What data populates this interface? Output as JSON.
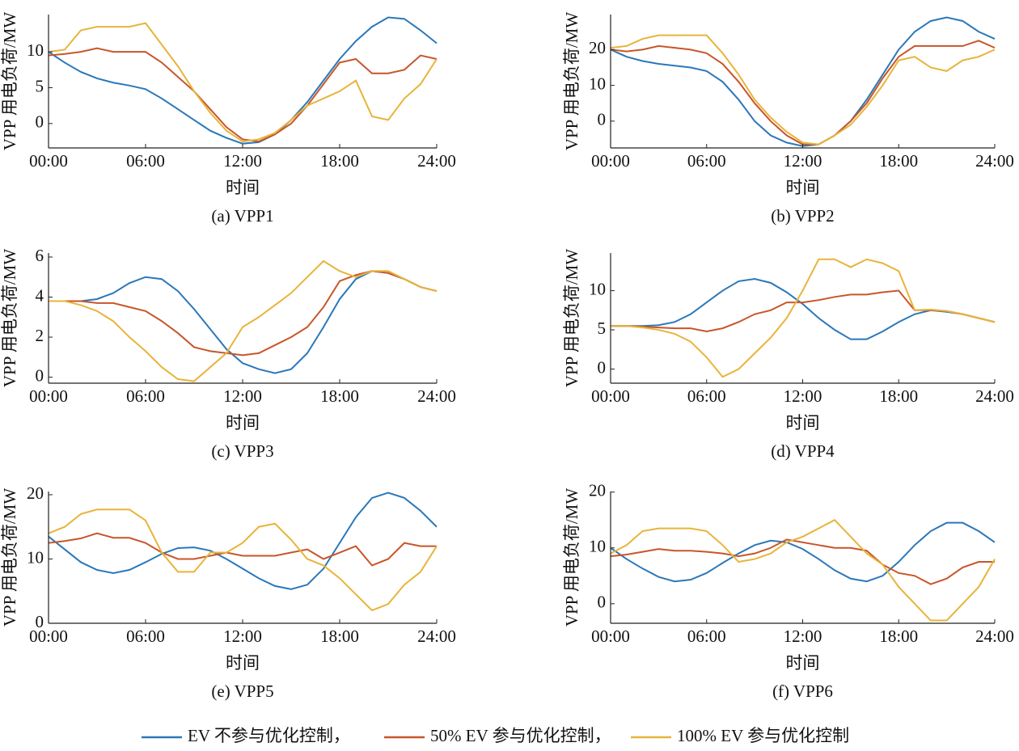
{
  "chart_data": [
    {
      "type": "line",
      "title": "(a)  VPP1",
      "xlabel": "时间",
      "ylabel": "VPP 用电负荷/MW",
      "x": [
        0,
        1,
        2,
        3,
        4,
        5,
        6,
        7,
        8,
        9,
        10,
        11,
        12,
        13,
        14,
        15,
        16,
        17,
        18,
        19,
        20,
        21,
        22,
        23,
        24
      ],
      "xlim": [
        0,
        24
      ],
      "ylim": [
        -3.4,
        15.2
      ],
      "xticks": [
        {
          "value": 0,
          "label": "00:00"
        },
        {
          "value": 6,
          "label": "06:00"
        },
        {
          "value": 12,
          "label": "12:00"
        },
        {
          "value": 18,
          "label": "18:00"
        },
        {
          "value": 24,
          "label": "24:00"
        }
      ],
      "yticks": [
        0,
        5,
        10
      ],
      "series": [
        {
          "color": "#2a78b9",
          "values": [
            10,
            8.5,
            7.2,
            6.3,
            5.7,
            5.3,
            4.8,
            3.5,
            2,
            0.5,
            -1,
            -2,
            -2.8,
            -2.6,
            -1.5,
            0.5,
            3,
            6,
            9,
            11.5,
            13.5,
            14.8,
            14.6,
            13,
            11.2
          ]
        },
        {
          "color": "#c8562a",
          "values": [
            9.5,
            9.7,
            10,
            10.5,
            10,
            10,
            10,
            8.5,
            6.5,
            4.5,
            2,
            -0.5,
            -2.2,
            -2.5,
            -1.5,
            0,
            2.5,
            5.5,
            8.5,
            9,
            7,
            7,
            7.5,
            9.5,
            9
          ]
        },
        {
          "color": "#e8b43a",
          "values": [
            10,
            10.3,
            13,
            13.5,
            13.5,
            13.5,
            14,
            11,
            8,
            4.5,
            1.5,
            -1,
            -2.5,
            -2.2,
            -1.3,
            0.5,
            2.5,
            3.5,
            4.5,
            6,
            1,
            0.5,
            3.5,
            5.5,
            9
          ]
        }
      ]
    },
    {
      "type": "line",
      "title": "(b)  VPP2",
      "xlabel": "时间",
      "ylabel": "VPP 用电负荷/MW",
      "x": [
        0,
        1,
        2,
        3,
        4,
        5,
        6,
        7,
        8,
        9,
        10,
        11,
        12,
        13,
        14,
        15,
        16,
        17,
        18,
        19,
        20,
        21,
        22,
        23,
        24
      ],
      "xlim": [
        0,
        24
      ],
      "ylim": [
        -7.5,
        29.8
      ],
      "xticks": [
        {
          "value": 0,
          "label": "00:00"
        },
        {
          "value": 6,
          "label": "06:00"
        },
        {
          "value": 12,
          "label": "12:00"
        },
        {
          "value": 18,
          "label": "18:00"
        },
        {
          "value": 24,
          "label": "24:00"
        }
      ],
      "yticks": [
        0,
        10,
        20
      ],
      "series": [
        {
          "color": "#2a78b9",
          "values": [
            20,
            18,
            16.8,
            16,
            15.5,
            15,
            14,
            11,
            6,
            0,
            -4,
            -6,
            -7,
            -6.5,
            -4,
            0,
            6,
            13,
            20,
            25,
            28,
            29,
            28,
            25,
            23
          ]
        },
        {
          "color": "#c8562a",
          "values": [
            20,
            19.5,
            20,
            21,
            20.5,
            20,
            19,
            16,
            11,
            5,
            0,
            -4,
            -6.5,
            -6.5,
            -4,
            0,
            5,
            12,
            18,
            21,
            21,
            21,
            21,
            22.5,
            20.5
          ]
        },
        {
          "color": "#e8b43a",
          "values": [
            20.5,
            21,
            23,
            24,
            24,
            24,
            24,
            19,
            13,
            6,
            1,
            -3,
            -6,
            -6.5,
            -4,
            -1,
            4,
            10,
            17,
            18,
            15,
            14,
            17,
            18,
            20
          ]
        }
      ]
    },
    {
      "type": "line",
      "title": "(c)  VPP3",
      "xlabel": "时间",
      "ylabel": "VPP 用电负荷/MW",
      "x": [
        0,
        1,
        2,
        3,
        4,
        5,
        6,
        7,
        8,
        9,
        10,
        11,
        12,
        13,
        14,
        15,
        16,
        17,
        18,
        19,
        20,
        21,
        22,
        23,
        24
      ],
      "xlim": [
        0,
        24
      ],
      "ylim": [
        -0.3,
        6.2
      ],
      "xticks": [
        {
          "value": 0,
          "label": "00:00"
        },
        {
          "value": 6,
          "label": "06:00"
        },
        {
          "value": 12,
          "label": "12:00"
        },
        {
          "value": 18,
          "label": "18:00"
        },
        {
          "value": 24,
          "label": "24:00"
        }
      ],
      "yticks": [
        0,
        2,
        4,
        6
      ],
      "series": [
        {
          "color": "#2a78b9",
          "values": [
            3.8,
            3.8,
            3.8,
            3.9,
            4.2,
            4.7,
            5,
            4.9,
            4.3,
            3.4,
            2.4,
            1.4,
            0.7,
            0.4,
            0.2,
            0.4,
            1.2,
            2.5,
            3.9,
            4.9,
            5.3,
            5.2,
            4.9,
            4.5,
            4.3
          ]
        },
        {
          "color": "#c8562a",
          "values": [
            3.8,
            3.8,
            3.8,
            3.7,
            3.7,
            3.5,
            3.3,
            2.8,
            2.2,
            1.5,
            1.3,
            1.2,
            1.1,
            1.2,
            1.6,
            2,
            2.5,
            3.5,
            4.8,
            5.1,
            5.3,
            5.2,
            4.9,
            4.5,
            4.3
          ]
        },
        {
          "color": "#e8b43a",
          "values": [
            3.8,
            3.8,
            3.6,
            3.3,
            2.8,
            2,
            1.3,
            0.5,
            -0.1,
            -0.2,
            0.5,
            1.2,
            2.5,
            3,
            3.6,
            4.2,
            5,
            5.8,
            5.3,
            5,
            5.3,
            5.3,
            4.9,
            4.5,
            4.3
          ]
        }
      ]
    },
    {
      "type": "line",
      "title": "(d)  VPP4",
      "xlabel": "时间",
      "ylabel": "VPP 用电负荷/MW",
      "x": [
        0,
        1,
        2,
        3,
        4,
        5,
        6,
        7,
        8,
        9,
        10,
        11,
        12,
        13,
        14,
        15,
        16,
        17,
        18,
        19,
        20,
        21,
        22,
        23,
        24
      ],
      "xlim": [
        0,
        24
      ],
      "ylim": [
        -1.8,
        14.8
      ],
      "xticks": [
        {
          "value": 0,
          "label": "00:00"
        },
        {
          "value": 6,
          "label": "06:00"
        },
        {
          "value": 12,
          "label": "12:00"
        },
        {
          "value": 18,
          "label": "18:00"
        },
        {
          "value": 24,
          "label": "24:00"
        }
      ],
      "yticks": [
        0,
        5,
        10
      ],
      "series": [
        {
          "color": "#2a78b9",
          "values": [
            5.5,
            5.5,
            5.5,
            5.6,
            6,
            7,
            8.5,
            10,
            11.2,
            11.5,
            11,
            9.8,
            8.3,
            6.5,
            5,
            3.8,
            3.8,
            4.8,
            6,
            7,
            7.5,
            7.3,
            7,
            6.5,
            6
          ]
        },
        {
          "color": "#c8562a",
          "values": [
            5.5,
            5.5,
            5.4,
            5.3,
            5.2,
            5.2,
            4.8,
            5.2,
            6,
            7,
            7.5,
            8.5,
            8.5,
            8.8,
            9.2,
            9.5,
            9.5,
            9.8,
            10,
            7.5,
            7.5,
            7.4,
            7,
            6.5,
            6
          ]
        },
        {
          "color": "#e8b43a",
          "values": [
            5.5,
            5.5,
            5.3,
            5,
            4.5,
            3.5,
            1.5,
            -1,
            0,
            2,
            4,
            6.5,
            10,
            14,
            14,
            13,
            14,
            13.5,
            12.5,
            7.5,
            7.6,
            7.4,
            7,
            6.5,
            6
          ]
        }
      ]
    },
    {
      "type": "line",
      "title": "(e)  VPP5",
      "xlabel": "时间",
      "ylabel": "VPP 用电负荷/MW",
      "x": [
        0,
        1,
        2,
        3,
        4,
        5,
        6,
        7,
        8,
        9,
        10,
        11,
        12,
        13,
        14,
        15,
        16,
        17,
        18,
        19,
        20,
        21,
        22,
        23,
        24
      ],
      "xlim": [
        0,
        24
      ],
      "ylim": [
        0,
        20.5
      ],
      "xticks": [
        {
          "value": 0,
          "label": "00:00"
        },
        {
          "value": 6,
          "label": "06:00"
        },
        {
          "value": 12,
          "label": "12:00"
        },
        {
          "value": 18,
          "label": "18:00"
        },
        {
          "value": 24,
          "label": "24:00"
        }
      ],
      "yticks": [
        0,
        10,
        20
      ],
      "series": [
        {
          "color": "#2a78b9",
          "values": [
            13.5,
            11.5,
            9.5,
            8.3,
            7.8,
            8.3,
            9.5,
            10.8,
            11.7,
            11.8,
            11.3,
            10,
            8.5,
            7,
            5.8,
            5.3,
            6,
            8.5,
            12.5,
            16.5,
            19.5,
            20.3,
            19.5,
            17.5,
            15
          ]
        },
        {
          "color": "#c8562a",
          "values": [
            12.5,
            12.8,
            13.2,
            14,
            13.3,
            13.3,
            12.5,
            11,
            10,
            10,
            10.5,
            11,
            10.5,
            10.5,
            10.5,
            11,
            11.5,
            10,
            11,
            12,
            9,
            10,
            12.5,
            12,
            12
          ]
        },
        {
          "color": "#e8b43a",
          "values": [
            14,
            15,
            17,
            17.7,
            17.7,
            17.7,
            16,
            11,
            8,
            8,
            11,
            11,
            12.5,
            15,
            15.5,
            13,
            10,
            9,
            7,
            4.5,
            2,
            3,
            6,
            8,
            12
          ]
        }
      ]
    },
    {
      "type": "line",
      "title": "(f)  VPP6",
      "xlabel": "时间",
      "ylabel": "VPP 用电负荷/MW",
      "x": [
        0,
        1,
        2,
        3,
        4,
        5,
        6,
        7,
        8,
        9,
        10,
        11,
        12,
        13,
        14,
        15,
        16,
        17,
        18,
        19,
        20,
        21,
        22,
        23,
        24
      ],
      "xlim": [
        0,
        24
      ],
      "ylim": [
        -3.5,
        20.1
      ],
      "xticks": [
        {
          "value": 0,
          "label": "00:00"
        },
        {
          "value": 6,
          "label": "06:00"
        },
        {
          "value": 12,
          "label": "12:00"
        },
        {
          "value": 18,
          "label": "18:00"
        },
        {
          "value": 24,
          "label": "24:00"
        }
      ],
      "yticks": [
        0,
        10,
        20
      ],
      "series": [
        {
          "color": "#2a78b9",
          "values": [
            10,
            8,
            6.3,
            4.8,
            4,
            4.3,
            5.5,
            7.3,
            9,
            10.5,
            11.3,
            11,
            9.8,
            8,
            6,
            4.5,
            4,
            5,
            7.5,
            10.5,
            13,
            14.5,
            14.5,
            13,
            11
          ]
        },
        {
          "color": "#c8562a",
          "values": [
            8.5,
            8.8,
            9.3,
            9.8,
            9.5,
            9.5,
            9.3,
            9,
            8.5,
            9,
            10,
            11.5,
            11,
            10.5,
            10,
            10,
            9.5,
            7,
            5.5,
            5,
            3.5,
            4.5,
            6.5,
            7.5,
            7.5
          ]
        },
        {
          "color": "#e8b43a",
          "values": [
            9,
            10.5,
            13,
            13.5,
            13.5,
            13.5,
            13,
            10.5,
            7.5,
            8,
            9,
            11,
            12,
            13.5,
            15,
            12,
            9,
            7,
            3,
            0,
            -3,
            -3,
            0,
            3,
            8
          ]
        }
      ]
    }
  ],
  "legend": {
    "labels": [
      "EV 不参与优化控制，",
      "50% EV 参与优化控制，",
      "100% EV 参与优化控制"
    ]
  }
}
